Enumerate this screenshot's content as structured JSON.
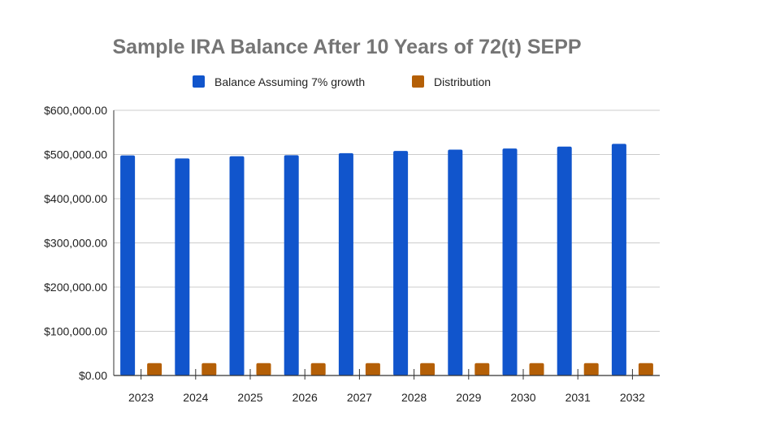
{
  "chart_data": {
    "type": "bar",
    "title": "Sample IRA Balance After 10 Years of 72(t) SEPP",
    "xlabel": "",
    "ylabel": "",
    "categories": [
      "2023",
      "2024",
      "2025",
      "2026",
      "2027",
      "2028",
      "2029",
      "2030",
      "2031",
      "2032"
    ],
    "series": [
      {
        "name": "Balance Assuming 7% growth",
        "color": "#1155cc",
        "values": [
          498000,
          491000,
          496000,
          498500,
          503000,
          508000,
          511000,
          513500,
          518000,
          524000
        ]
      },
      {
        "name": "Distribution",
        "color": "#b45f06",
        "values": [
          28000,
          28000,
          28000,
          28000,
          28000,
          28000,
          28000,
          28000,
          28000,
          28000
        ]
      }
    ],
    "ylim": [
      0,
      600000
    ],
    "yticks": [
      0,
      100000,
      200000,
      300000,
      400000,
      500000,
      600000
    ],
    "ytick_labels": [
      "$0.00",
      "$100,000.00",
      "$200,000.00",
      "$300,000.00",
      "$400,000.00",
      "$500,000.00",
      "$600,000.00"
    ],
    "grid": true,
    "legend_position": "top"
  }
}
